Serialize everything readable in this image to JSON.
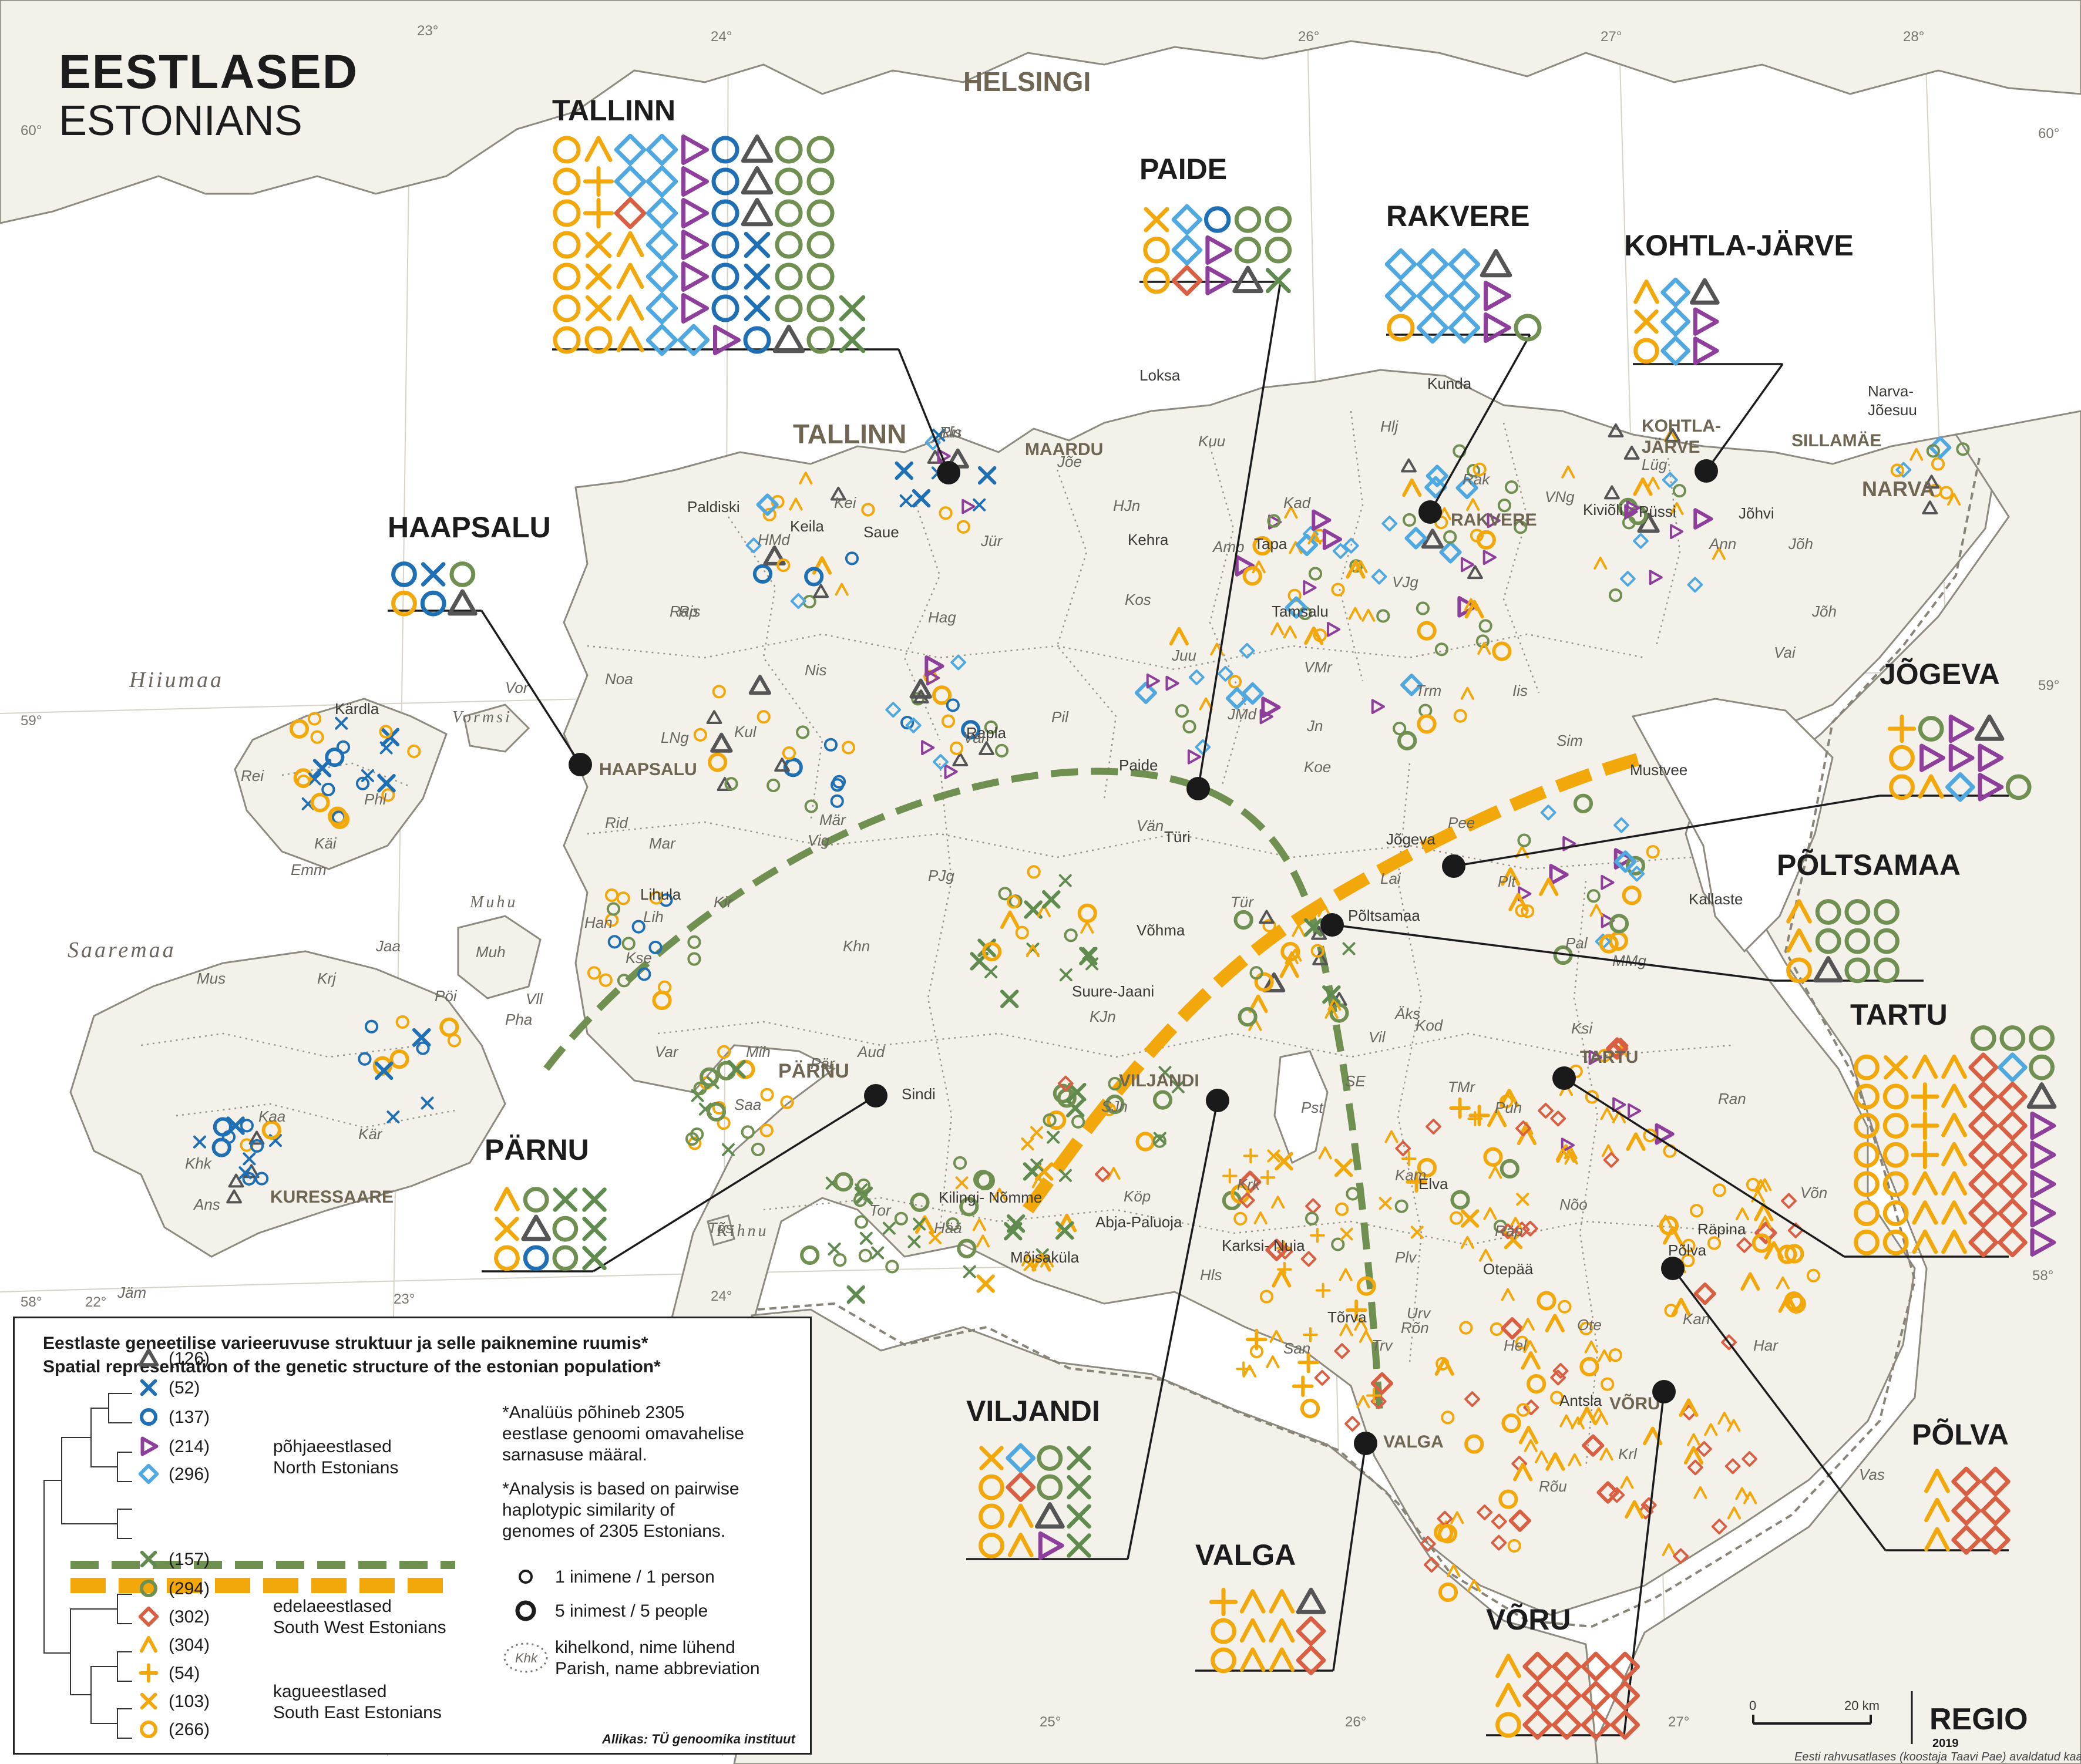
{
  "title": {
    "main": "EESTLASED",
    "sub": "ESTONIANS"
  },
  "colors": {
    "triangle": "#555555",
    "cross_blue": "#1f6fb5",
    "circle_blue": "#1f6fb5",
    "triangle_purple": "#8e3f9c",
    "diamond_lightblue": "#4fa8e0",
    "cross_green": "#5f8c4e",
    "circle_green": "#6f9050",
    "diamond_red": "#d95f43",
    "chevron_orange": "#f2a80a",
    "plus_orange": "#f2a80a",
    "cross_orange": "#f2a80a",
    "circle_orange": "#f2a80a",
    "green_line": "#6f9050",
    "orange_line": "#f2a80a"
  },
  "coordinates": {
    "longitude": [
      "23°",
      "24°",
      "26°",
      "27°",
      "28°",
      "22°",
      "23°",
      "24°",
      "25°",
      "26°",
      "27°"
    ],
    "latitude": [
      "60°",
      "60°",
      "59°",
      "59°",
      "58°",
      "58°"
    ]
  },
  "places": {
    "helsingi": "HELSINGI",
    "tallinn": "TALLINN",
    "maardu": "MAARDU",
    "rakvere": "RAKVERE",
    "kohtla": "KOHTLA-\nJÄRVE",
    "sillamae": "SILLAMÄE",
    "narva": "NARVA",
    "narva_joesuu": "Narva-\nJõesuu",
    "haapsalu": "HAAPSALU",
    "parnu": "PÄRNU",
    "viljandi": "VILJANDI",
    "tartu": "TARTU",
    "valga": "VALGA",
    "voru": "VÕRU",
    "kuressaare": "KURESSAARE",
    "towns": [
      "Loksa",
      "Kunda",
      "Paldiski",
      "Keila",
      "Saue",
      "Kehra",
      "Tapa",
      "Tamsalu",
      "Kiviõli",
      "Püssi",
      "Jõhvi",
      "Kärdla",
      "Rapla",
      "Paide",
      "Türi",
      "Põltsamaa",
      "Jõgeva",
      "Mustvee",
      "Kallaste",
      "Lihula",
      "Sindi",
      "Elva",
      "Otepää",
      "Põlva",
      "Räpina",
      "Antsla",
      "Tõrva",
      "Karksi-\nNuia",
      "Abja-Paluoja",
      "Mõisaküla",
      "Kilingi-\nNõmme",
      "Võhma",
      "Suure-Jaani"
    ],
    "islands": [
      "Hiiumaa",
      "Saaremaa",
      "Muhu",
      "Vormsi",
      "Kihnu"
    ],
    "parishes": [
      "Tln",
      "Jõe",
      "Kuu",
      "Hlj",
      "Rak",
      "VNg",
      "Lüg",
      "Kad",
      "Amb",
      "HJn",
      "Jür",
      "Kei",
      "HMd",
      "Kos",
      "Hag",
      "Nis",
      "Ris",
      "Noa",
      "Vor",
      "Rei",
      "Phl",
      "Käi",
      "Emm",
      "LNg",
      "Kul",
      "Mär",
      "Rid",
      "Mar",
      "Han",
      "Kse",
      "Lih",
      "Kir",
      "Vig",
      "Muh",
      "Krj",
      "Jaa",
      "Mus",
      "Pöi",
      "Vll",
      "Kaa",
      "Pha",
      "Kär",
      "Khk",
      "Ans",
      "Jäm",
      "Var",
      "Mih",
      "Aud",
      "Pär",
      "Tor",
      "Hää",
      "Saa",
      "Tõs",
      "Khn",
      "PJg",
      "Vän",
      "Tür",
      "Pil",
      "Juu",
      "JMd",
      "Ann",
      "Jõh",
      "Jõh",
      "Vai",
      "Iis",
      "Sim",
      "Trm",
      "VJg",
      "VMr",
      "Jn",
      "Koe",
      "Pee",
      "Lai",
      "Plt",
      "Pal",
      "MMg",
      "Kod",
      "Äks",
      "Ksi",
      "TMr",
      "Puh",
      "Nõo",
      "Kam",
      "Ran",
      "Võn",
      "Räp",
      "Ote",
      "Kan",
      "Plv",
      "Rõn",
      "San",
      "Hel",
      "Urv",
      "Krl",
      "Rõu",
      "Har",
      "Vas",
      "SE",
      "Vil",
      "KJn",
      "SJn",
      "Köp",
      "Hls",
      "Krk",
      "Pst",
      "Trv",
      "Val",
      "Rap",
      "Ris"
    ]
  },
  "city_boxes": [
    {
      "name": "TALLINN",
      "rows": [
        [
          "co",
          "ch",
          "dl",
          "dl",
          "tp",
          "cb",
          "tg",
          "cg",
          "cg"
        ],
        [
          "co",
          "po",
          "dl",
          "dl",
          "tp",
          "cb",
          "tg",
          "cg",
          "cg"
        ],
        [
          "co",
          "po",
          "dr",
          "dl",
          "tp",
          "cb",
          "tg",
          "cg",
          "cg"
        ],
        [
          "co",
          "xo",
          "ch",
          "dl",
          "tp",
          "cb",
          "xb",
          "cg",
          "cg"
        ],
        [
          "co",
          "xo",
          "ch",
          "dl",
          "tp",
          "cb",
          "xb",
          "cg",
          "cg"
        ],
        [
          "co",
          "xo",
          "ch",
          "dl",
          "tp",
          "cb",
          "xb",
          "cg",
          "cg",
          "xg"
        ],
        [
          "co",
          "co",
          "ch",
          "dl",
          "dl",
          "tp",
          "cb",
          "tg",
          "cg",
          "xg"
        ]
      ]
    },
    {
      "name": "PAIDE",
      "rows": [
        [
          "xo",
          "dl",
          "cb",
          "cg",
          "cg"
        ],
        [
          "co",
          "dl",
          "tp",
          "cg",
          "cg"
        ],
        [
          "co",
          "dr",
          "tp",
          "tg",
          "xg"
        ]
      ]
    },
    {
      "name": "RAKVERE",
      "rows": [
        [
          "dl",
          "dl",
          "dl",
          "tg"
        ],
        [
          "dl",
          "dl",
          "dl",
          "tp"
        ],
        [
          "co",
          "dl",
          "dl",
          "tp",
          "cg"
        ]
      ]
    },
    {
      "name": "KOHTLA-JÄRVE",
      "rows": [
        [
          "ch",
          "dl",
          "tg"
        ],
        [
          "xo",
          "dl",
          "tp"
        ],
        [
          "co",
          "dl",
          "tp"
        ]
      ]
    },
    {
      "name": "HAAPSALU",
      "rows": [
        [
          "cb",
          "xb",
          "cg"
        ],
        [
          "co",
          "cb",
          "tg"
        ]
      ]
    },
    {
      "name": "JÕGEVA",
      "rows": [
        [
          "po",
          "cg",
          "tp",
          "tg"
        ],
        [
          "co",
          "tp",
          "tp",
          "tp"
        ],
        [
          "co",
          "ch",
          "dl",
          "tp",
          "cg"
        ]
      ]
    },
    {
      "name": "PÕLTSAMAA",
      "rows": [
        [
          "ch",
          "cg",
          "cg",
          "cg"
        ],
        [
          "ch",
          "cg",
          "cg",
          "cg"
        ],
        [
          "co",
          "tg",
          "cg",
          "cg"
        ]
      ]
    },
    {
      "name": "TARTU",
      "rows": [
        [
          "cg",
          "cg",
          "cg"
        ],
        [
          "co",
          "xo",
          "ch",
          "ch",
          "dr",
          "dl",
          "cg"
        ],
        [
          "co",
          "co",
          "po",
          "ch",
          "dr",
          "dr",
          "tg"
        ],
        [
          "co",
          "co",
          "po",
          "ch",
          "dr",
          "dr",
          "tp"
        ],
        [
          "co",
          "co",
          "po",
          "ch",
          "dr",
          "dr",
          "tp"
        ],
        [
          "co",
          "co",
          "ch",
          "ch",
          "dr",
          "dr",
          "tp"
        ],
        [
          "co",
          "co",
          "ch",
          "ch",
          "dr",
          "dr",
          "tp"
        ],
        [
          "co",
          "co",
          "ch",
          "ch",
          "dr",
          "dr",
          "tp"
        ]
      ]
    },
    {
      "name": "PÄRNU",
      "rows": [
        [
          "ch",
          "cg",
          "xg",
          "xg"
        ],
        [
          "xo",
          "tg",
          "cg",
          "xg"
        ],
        [
          "co",
          "cb",
          "cg",
          "xg"
        ]
      ]
    },
    {
      "name": "VILJANDI",
      "rows": [
        [
          "xo",
          "dl",
          "cg",
          "xg"
        ],
        [
          "co",
          "dr",
          "cg",
          "xg"
        ],
        [
          "co",
          "ch",
          "tg",
          "xg"
        ],
        [
          "co",
          "ch",
          "tp",
          "xg"
        ]
      ]
    },
    {
      "name": "VALGA",
      "rows": [
        [
          "po",
          "ch",
          "ch",
          "tg"
        ],
        [
          "co",
          "ch",
          "ch",
          "dr"
        ],
        [
          "co",
          "ch",
          "ch",
          "dr"
        ]
      ]
    },
    {
      "name": "VÕRU",
      "rows": [
        [
          "ch",
          "dr",
          "dr",
          "dr",
          "dr"
        ],
        [
          "ch",
          "dr",
          "dr",
          "dr",
          "dr"
        ],
        [
          "co",
          "dr",
          "dr",
          "dr",
          "dr"
        ]
      ]
    },
    {
      "name": "PÕLVA",
      "rows": [
        [
          "ch",
          "dr",
          "dr"
        ],
        [
          "ch",
          "dr",
          "dr"
        ],
        [
          "ch",
          "dr",
          "dr"
        ]
      ]
    }
  ],
  "legend": {
    "title_et": "Eestlaste geneetilise varieeruvuse struktuur ja selle paiknemine ruumis*",
    "title_en": "Spatial representation of the genetic structure of the estonian population*",
    "items": [
      {
        "sym": "tg",
        "count": "(126)"
      },
      {
        "sym": "xb",
        "count": "(52)"
      },
      {
        "sym": "cb",
        "count": "(137)"
      },
      {
        "sym": "tp",
        "count": "(214)"
      },
      {
        "sym": "dl",
        "count": "(296)"
      },
      {
        "sym": "xg",
        "count": "(157)"
      },
      {
        "sym": "cg",
        "count": "(294)"
      },
      {
        "sym": "dr",
        "count": "(302)"
      },
      {
        "sym": "ch",
        "count": "(304)"
      },
      {
        "sym": "po",
        "count": "(54)"
      },
      {
        "sym": "xo",
        "count": "(103)"
      },
      {
        "sym": "co",
        "count": "(266)"
      }
    ],
    "groups": [
      {
        "et": "põhjaeestlased",
        "en": "North Estonians"
      },
      {
        "et": "edelaeestlased",
        "en": "South West Estonians"
      },
      {
        "et": "kagueestlased",
        "en": "South East Estonians"
      }
    ],
    "note_et": [
      "*Analüüs põhineb 2305",
      "eestlase genoomi omavahelise",
      "sarnasuse määral."
    ],
    "note_en": [
      "*Analysis is based on pairwise",
      "haplotypic similarity of",
      "genomes of 2305 Estonians."
    ],
    "one_person": "1 inimene / 1 person",
    "five_people": "5 inimest / 5 people",
    "parish_et": "kihelkond, nime lühend",
    "parish_en": "Parish, name abbreviation",
    "parish_sample": "Khk",
    "source": "Allikas: TÜ genoomika instituut"
  },
  "scale": {
    "zero": "0",
    "label": "20 km"
  },
  "publisher": {
    "name": "REGIO",
    "year": "2019"
  },
  "credit": "Eesti rahvusatlases (koostaja Taavi Pae) avaldatud kaardi suurendus."
}
